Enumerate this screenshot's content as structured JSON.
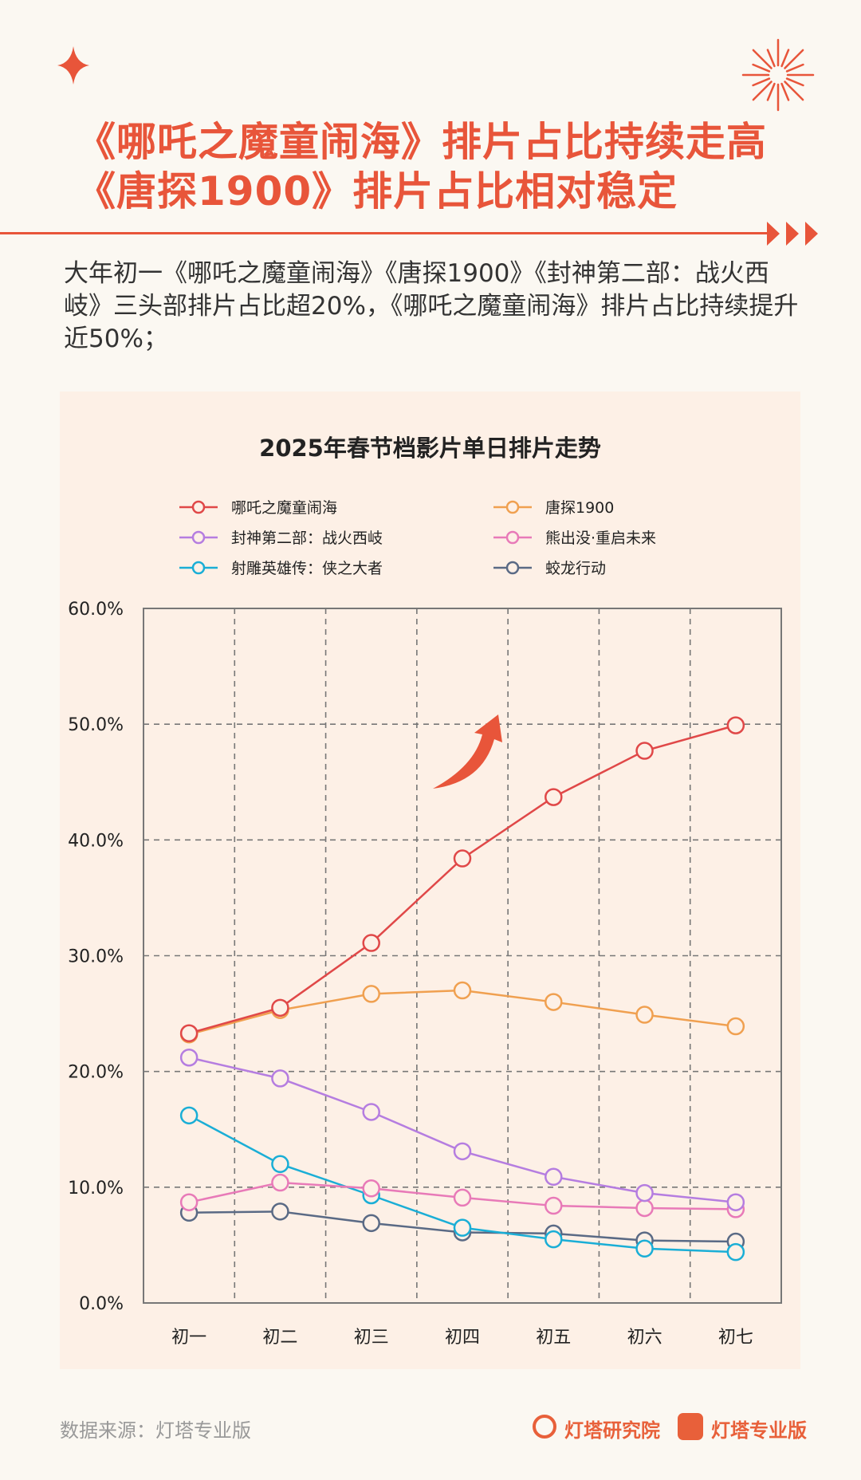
{
  "header": {
    "title_line1": "《哪吒之魔童闹海》排片占比持续走高",
    "title_line2": "《唐探1900》排片占比相对稳定"
  },
  "summary": "大年初一《哪吒之魔童闹海》《唐探1900》《封神第二部：战火西岐》三头部排片占比超20%，《哪吒之魔童闹海》排片占比持续提升近50%；",
  "footer": {
    "source": "数据来源：灯塔专业版",
    "brand1": "灯塔研究院",
    "brand2": "灯塔专业版"
  },
  "colors": {
    "accent": "#e8553a"
  },
  "chart_data": {
    "type": "line",
    "title": "2025年春节档影片单日排片走势",
    "xlabel": "",
    "ylabel": "",
    "categories": [
      "初一",
      "初二",
      "初三",
      "初四",
      "初五",
      "初六",
      "初七"
    ],
    "ylim": [
      0,
      60
    ],
    "yticks": [
      "0.0%",
      "10.0%",
      "20.0%",
      "30.0%",
      "40.0%",
      "50.0%",
      "60.0%"
    ],
    "grid": true,
    "legend_position": "top",
    "series": [
      {
        "name": "哪吒之魔童闹海",
        "color": "#e04848",
        "values": [
          23.3,
          25.5,
          31.1,
          38.4,
          43.7,
          47.7,
          49.9
        ]
      },
      {
        "name": "唐探1900",
        "color": "#f0a050",
        "values": [
          23.2,
          25.3,
          26.7,
          27.0,
          26.0,
          24.9,
          23.9
        ]
      },
      {
        "name": "封神第二部：战火西岐",
        "color": "#b57de0",
        "values": [
          21.2,
          19.4,
          16.5,
          13.1,
          10.9,
          9.5,
          8.7
        ]
      },
      {
        "name": "熊出没·重启未来",
        "color": "#e87ab8",
        "values": [
          8.7,
          10.4,
          9.9,
          9.1,
          8.4,
          8.2,
          8.1
        ]
      },
      {
        "name": "射雕英雄传：侠之大者",
        "color": "#1aaed6",
        "values": [
          16.2,
          12.0,
          9.3,
          6.5,
          5.5,
          4.7,
          4.4
        ]
      },
      {
        "name": "蛟龙行动",
        "color": "#5a6a85",
        "values": [
          7.8,
          7.9,
          6.9,
          6.1,
          6.0,
          5.4,
          5.3
        ]
      }
    ]
  }
}
